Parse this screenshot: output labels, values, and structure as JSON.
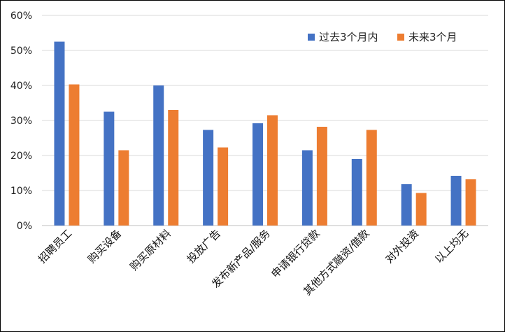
{
  "chart_data": {
    "type": "bar",
    "categories": [
      "招聘员工",
      "购买设备",
      "购买原材料",
      "投放广告",
      "发布新产品/服务",
      "申请银行贷款",
      "其他方式融资/借款",
      "对外投资",
      "以上均无"
    ],
    "series": [
      {
        "name": "过去3个月内",
        "color": "#4472C4",
        "values": [
          52.5,
          32.5,
          40.0,
          27.3,
          29.2,
          21.5,
          19.0,
          11.8,
          14.2
        ]
      },
      {
        "name": "未来3个月",
        "color": "#ED7D31",
        "values": [
          40.3,
          21.5,
          33.0,
          22.3,
          31.5,
          28.2,
          27.3,
          9.3,
          13.2
        ]
      }
    ],
    "y_ticks": [
      "0%",
      "10%",
      "20%",
      "30%",
      "40%",
      "50%",
      "60%"
    ],
    "ylim": [
      0,
      60
    ],
    "grid": true,
    "legend": "top-right",
    "title": "",
    "xlabel": "",
    "ylabel": ""
  }
}
